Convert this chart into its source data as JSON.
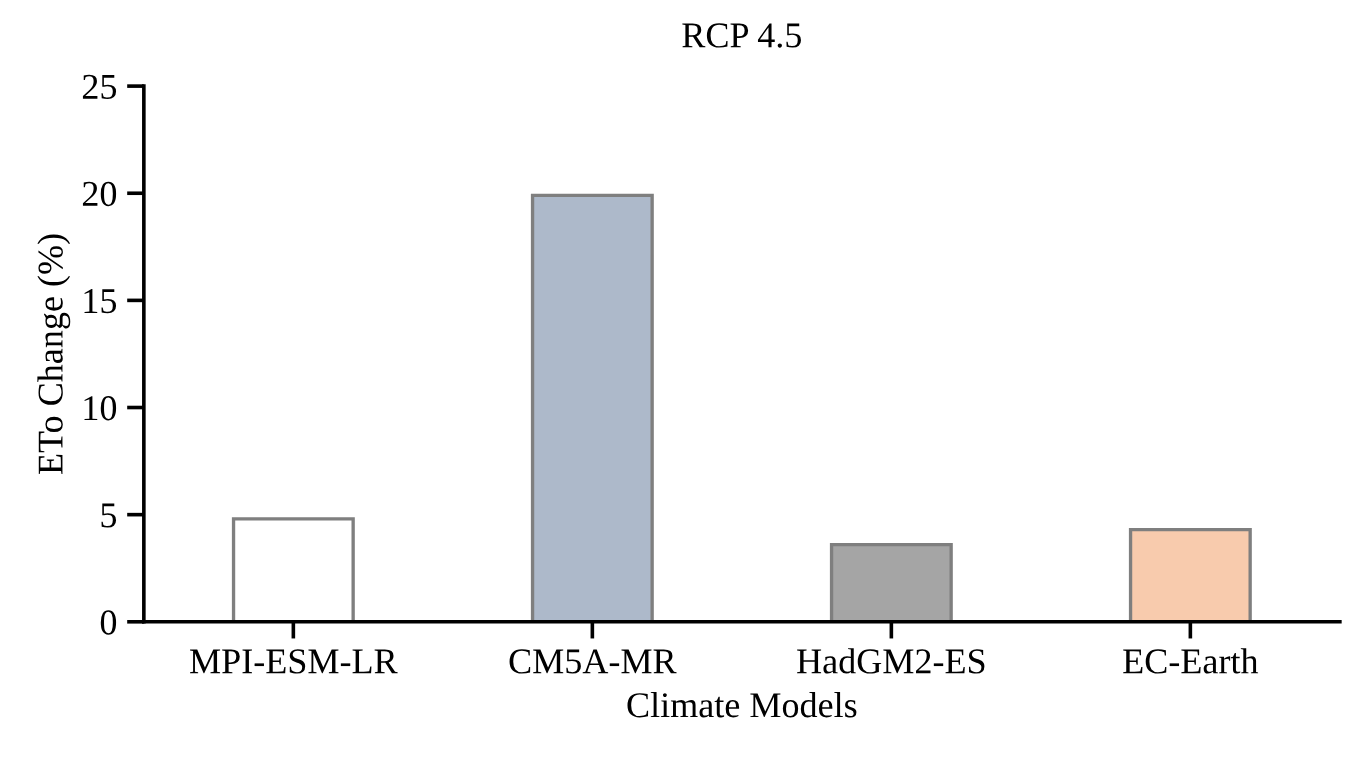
{
  "chart_data": {
    "type": "bar",
    "title": "RCP 4.5",
    "xlabel": "Climate Models",
    "ylabel": "ETo Change (%)",
    "categories": [
      "MPI-ESM-LR",
      "CM5A-MR",
      "HadGM2-ES",
      "EC-Earth"
    ],
    "values": [
      4.8,
      19.9,
      3.6,
      4.3
    ],
    "colors": [
      "#ffffff",
      "#adb9ca",
      "#a5a5a5",
      "#f8cbad"
    ],
    "ylim": [
      0,
      25
    ],
    "yticks": [
      0,
      5,
      10,
      15,
      20,
      25
    ],
    "grid": false,
    "legend": false
  }
}
